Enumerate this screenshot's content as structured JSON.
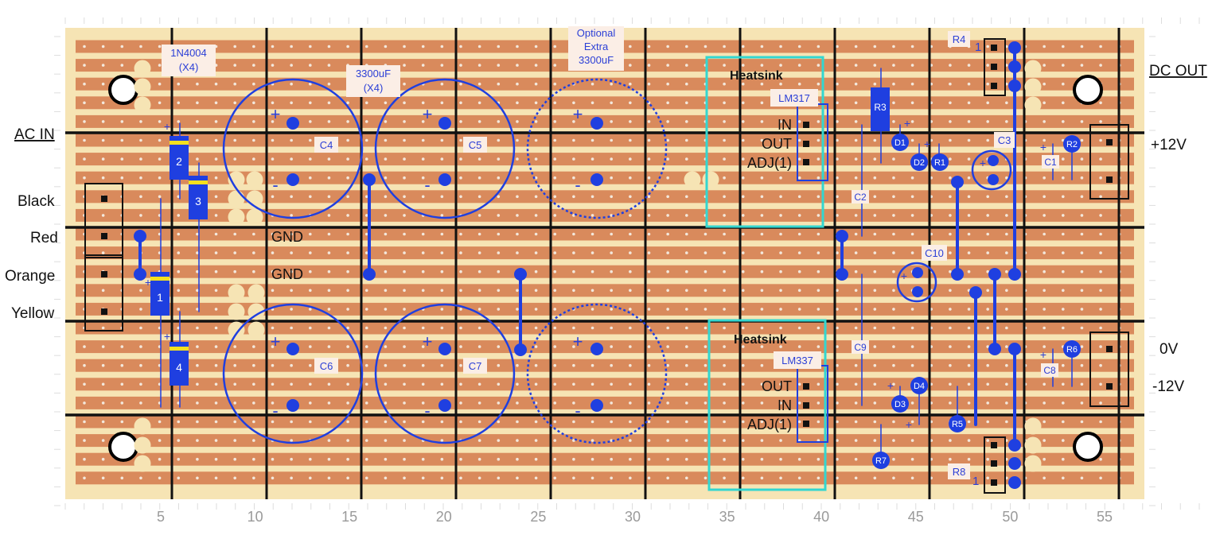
{
  "colors": {
    "board": "#f6e4b4",
    "strip": "#d98a5c",
    "hole": "#f3e8dc",
    "wire": "#1f3fe0",
    "track_cut": "#111111",
    "heatsink": "#33d6d0",
    "pad": "#f6e4b4"
  },
  "side_labels": {
    "ac_in": "AC IN",
    "black": "Black",
    "red": "Red",
    "orange": "Orange",
    "yellow": "Yellow",
    "dc_out": "DC OUT",
    "plus12": "+12V",
    "zero": "0V",
    "minus12": "-12V"
  },
  "board_labels": {
    "diode_type": "1N4004",
    "diode_qty": "(X4)",
    "cap_value": "3300uF",
    "cap_qty": "(X4)",
    "opt1": "Optional",
    "opt2": "Extra",
    "opt3": "3300uF",
    "gnd1": "GND",
    "gnd2": "GND",
    "heatsink_top": "Heatsink",
    "heatsink_bottom": "Heatsink",
    "reg_top": "LM317",
    "reg_bottom": "LM337",
    "in": "IN",
    "out": "OUT",
    "adj": "ADJ(1)",
    "one": "1",
    "plus": "+",
    "minus": "-"
  },
  "diodes": [
    "1",
    "2",
    "3",
    "4"
  ],
  "big_caps": [
    "C4",
    "C5",
    "C6",
    "C7"
  ],
  "small_parts": [
    "C1",
    "C2",
    "C3",
    "C8",
    "C9",
    "C10",
    "D1",
    "D2",
    "D3",
    "D4",
    "R1",
    "R2",
    "R3",
    "R4",
    "R5",
    "R6",
    "R7",
    "R8"
  ],
  "x_axis_ticks": [
    "5",
    "10",
    "15",
    "20",
    "25",
    "30",
    "35",
    "40",
    "45",
    "50",
    "55"
  ]
}
